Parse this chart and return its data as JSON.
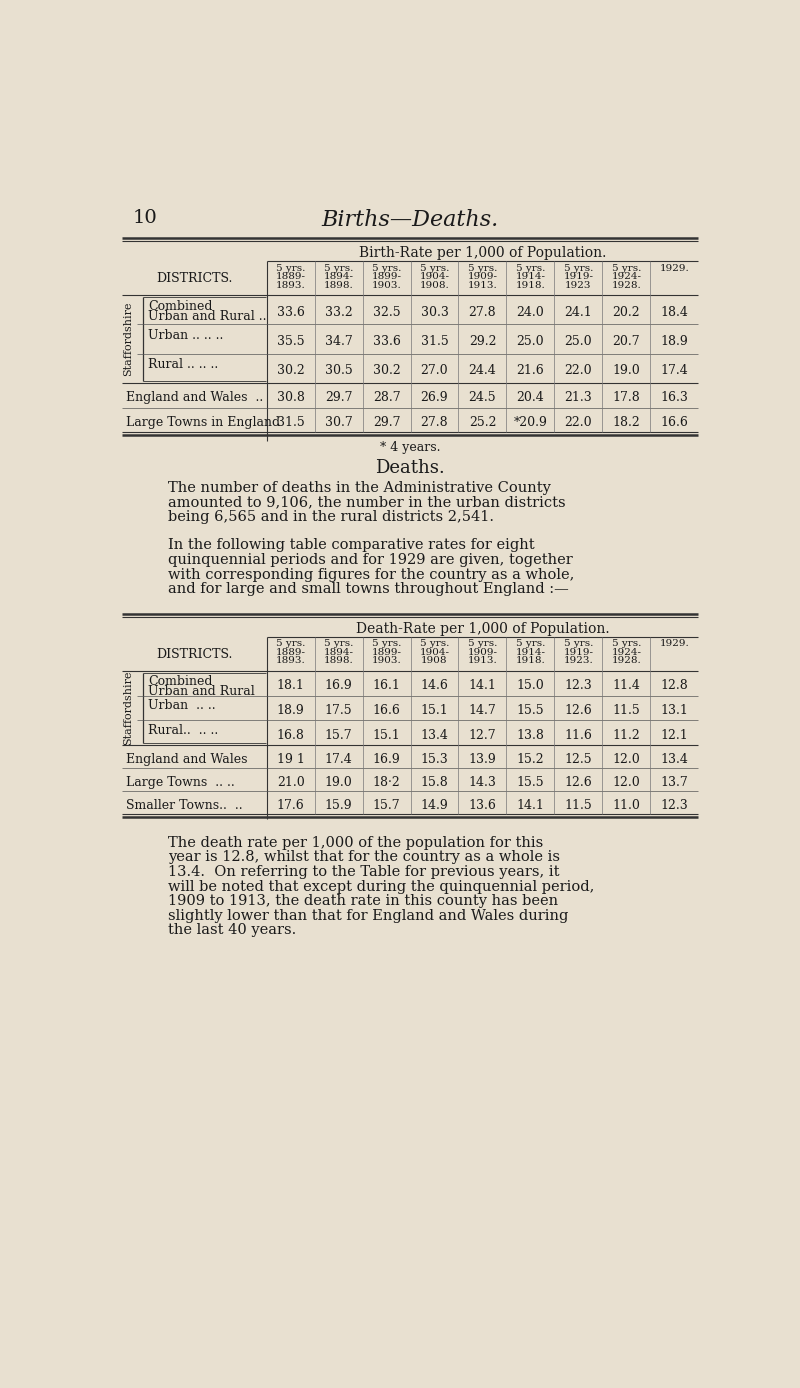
{
  "page_number": "10",
  "page_title": "Births—Deaths.",
  "bg_color": "#e8e0d0",
  "text_color": "#1a1a1a",
  "birth_table": {
    "title": "Birth-Rate per 1,000 of Population.",
    "col_headers": [
      "5 yrs.\n1889-\n1893.",
      "5 yrs.\n1894-\n1898.",
      "5 yrs.\n1899-\n1903.",
      "5 yrs.\n1904-\n1908.",
      "5 yrs.\n1909-\n1913.",
      "5 yrs.\n1914-\n1918.",
      "5 yrs.\n1919-\n1923",
      "5 yrs.\n1924-\n1928.",
      "1929."
    ],
    "row_label_col": "DISTRICTS.",
    "rows": [
      {
        "label": "Combined\nUrban and Rural ..",
        "values": [
          "33.6",
          "33.2",
          "32.5",
          "30.3",
          "27.8",
          "24.0",
          "24.1",
          "20.2",
          "18.4"
        ]
      },
      {
        "label": "Urban .. .. ..",
        "values": [
          "35.5",
          "34.7",
          "33.6",
          "31.5",
          "29.2",
          "25.0",
          "25.0",
          "20.7",
          "18.9"
        ]
      },
      {
        "label": "Rural .. .. ..",
        "values": [
          "30.2",
          "30.5",
          "30.2",
          "27.0",
          "24.4",
          "21.6",
          "22.0",
          "19.0",
          "17.4"
        ]
      }
    ],
    "extra_rows": [
      {
        "label": "England and Wales  ..",
        "values": [
          "30.8",
          "29.7",
          "28.7",
          "26.9",
          "24.5",
          "20.4",
          "21.3",
          "17.8",
          "16.3"
        ]
      },
      {
        "label": "Large Towns in England",
        "values": [
          "31.5",
          "30.7",
          "29.7",
          "27.8",
          "25.2",
          "*20.9",
          "22.0",
          "18.2",
          "16.6"
        ]
      }
    ],
    "footnote": "* 4 years."
  },
  "deaths_section": {
    "heading": "Deaths.",
    "para1": "The number of deaths in the Administrative County\namounted to 9,106, the number in the urban districts\nbeing 6,565 and in the rural districts 2,541.",
    "para2": "In the following table comparative rates for eight\nquinquennial periods and for 1929 are given, together\nwith corresponding figures for the country as a whole,\nand for large and small towns throughout England :—"
  },
  "death_table": {
    "title": "Death-Rate per 1,000 of Population.",
    "col_headers": [
      "5 yrs.\n1889-\n1893.",
      "5 yrs.\n1894-\n1898.",
      "5 yrs.\n1899-\n1903.",
      "5 yrs.\n1904-\n1908",
      "5 yrs.\n1909-\n1913.",
      "5 yrs.\n1914-\n1918.",
      "5 yrs.\n1919-\n1923.",
      "5 yrs.\n1924-\n1928.",
      "1929."
    ],
    "row_label_col": "DISTRICTS.",
    "rows": [
      {
        "label": "Combined\nUrban and Rural",
        "values": [
          "18.1",
          "16.9",
          "16.1",
          "14.6",
          "14.1",
          "15.0",
          "12.3",
          "11.4",
          "12.8"
        ]
      },
      {
        "label": "Urban  .. ..",
        "values": [
          "18.9",
          "17.5",
          "16.6",
          "15.1",
          "14.7",
          "15.5",
          "12.6",
          "11.5",
          "13.1"
        ]
      },
      {
        "label": "Rural..  .. ..",
        "values": [
          "16.8",
          "15.7",
          "15.1",
          "13.4",
          "12.7",
          "13.8",
          "11.6",
          "11.2",
          "12.1"
        ]
      }
    ],
    "extra_rows": [
      {
        "label": "England and Wales",
        "values": [
          "19 1",
          "17.4",
          "16.9",
          "15.3",
          "13.9",
          "15.2",
          "12.5",
          "12.0",
          "13.4"
        ]
      },
      {
        "label": "Large Towns  .. ..",
        "values": [
          "21.0",
          "19.0",
          "18·2",
          "15.8",
          "14.3",
          "15.5",
          "12.6",
          "12.0",
          "13.7"
        ]
      },
      {
        "label": "Smaller Towns..  ..",
        "values": [
          "17.6",
          "15.9",
          "15.7",
          "14.9",
          "13.6",
          "14.1",
          "11.5",
          "11.0",
          "12.3"
        ]
      }
    ]
  },
  "closing_para": "The death rate per 1,000 of the population for this\nyear is 12.8, whilst that for the country as a whole is\n13.4.  On referring to the Table for previous years, it\nwill be noted that except during the quinquennial period,\n1909 to 1913, the death rate in this county has been\nslightly lower than that for England and Wales during\nthe last 40 years."
}
